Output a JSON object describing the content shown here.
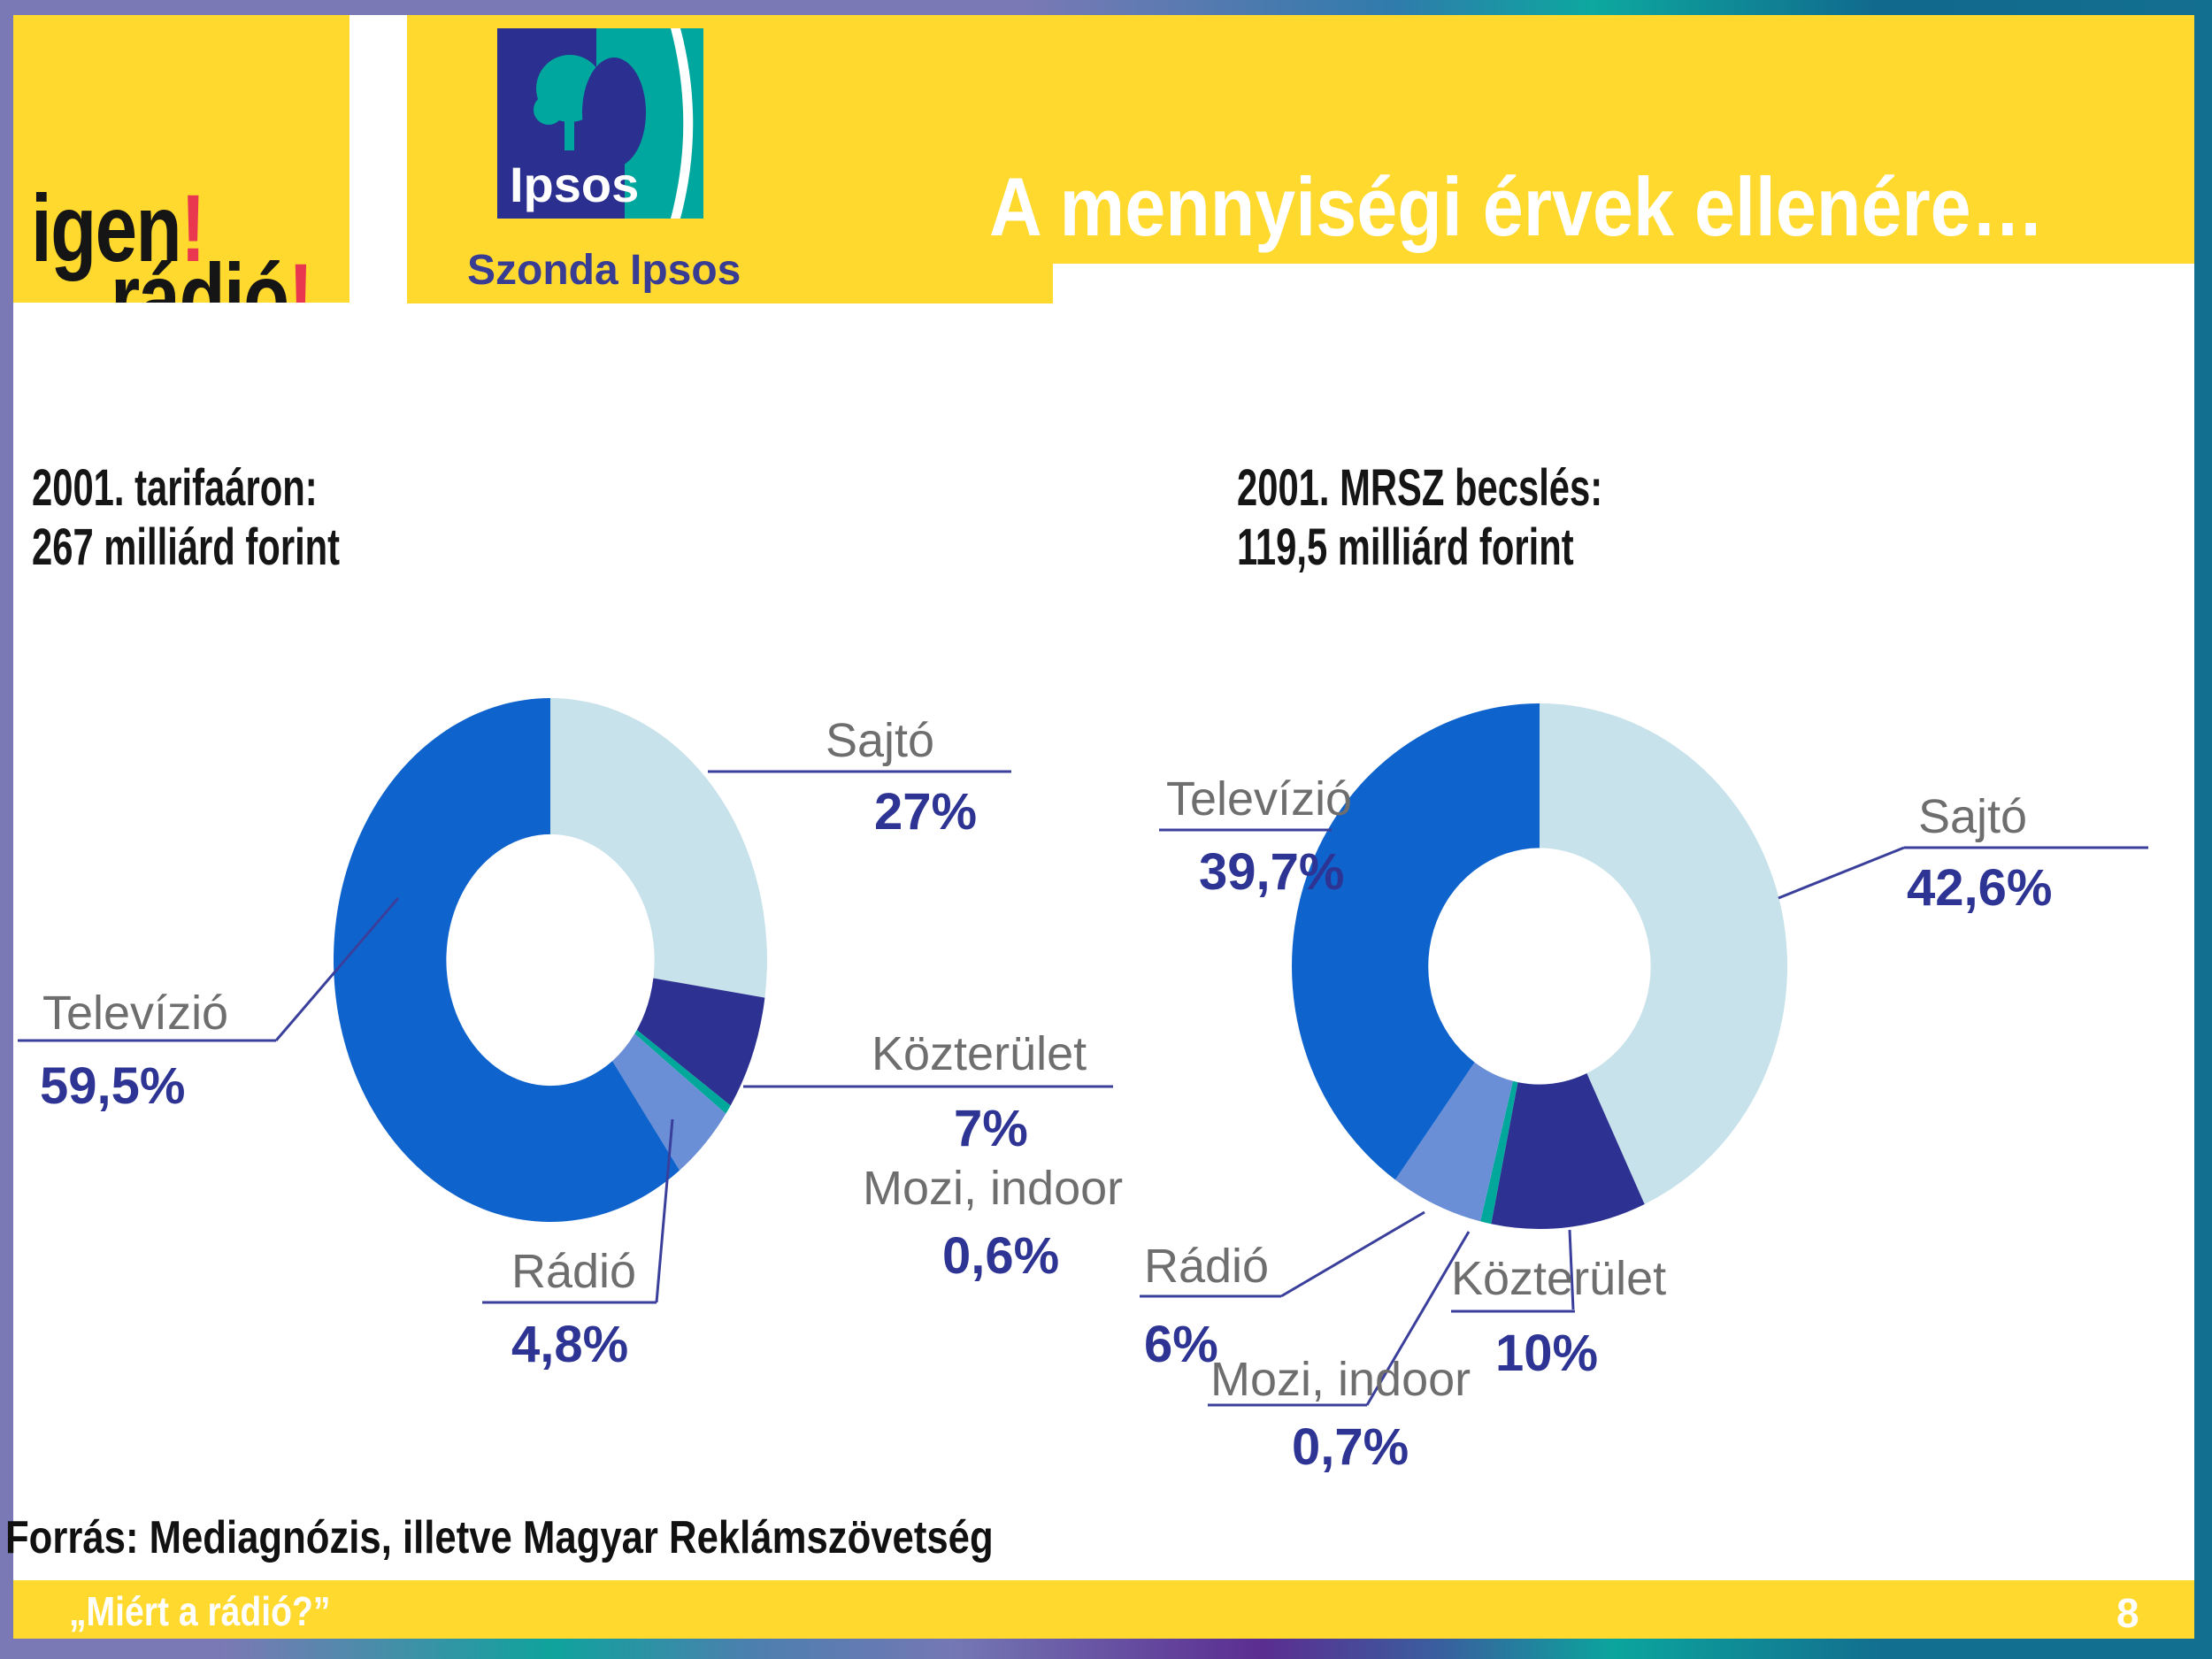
{
  "theme": {
    "slide_yellow": "#FFD92E",
    "border_purple": "#7B79B5",
    "border_teal": "#136F8F",
    "title_white": "#FFFFFF",
    "label_gray": "#6E6E6E",
    "value_navy": "#2E3493",
    "leader_blue": "#3A3F9B"
  },
  "logos": {
    "igen_line1_text": "igen",
    "igen_line1_mark": "!",
    "igen_line2_text": "rádió",
    "igen_line2_mark": "!",
    "ipsos_wordmark": "Ipsos",
    "szonda": "Szonda Ipsos"
  },
  "header": {
    "title": "A mennyiségi érvek ellenére…"
  },
  "chart_data": [
    {
      "type": "pie",
      "subtype": "donut",
      "title": "2001. tarifaáron: 267 milliárd forint",
      "heading_lines": [
        "2001. tarifaáron:",
        "267 milliárd forint"
      ],
      "categories": [
        "Sajtó",
        "Közterület",
        "Mozi, indoor",
        "Rádió",
        "Televízió"
      ],
      "values": [
        27,
        7,
        0.6,
        4.8,
        59.5
      ],
      "value_labels": [
        "27%",
        "7%",
        "0,6%",
        "4,8%",
        "59,5%"
      ],
      "colors": [
        "#C7E2EA",
        "#2D3192",
        "#00A79B",
        "#6B8FD6",
        "#0F63CC"
      ],
      "start_angle_deg": 0,
      "direction": "clockwise",
      "legend": false
    },
    {
      "type": "pie",
      "subtype": "donut",
      "title": "2001. MRSZ becslés: 119,5 milliárd forint",
      "heading_lines": [
        "2001. MRSZ becslés:",
        "119,5 milliárd forint"
      ],
      "categories": [
        "Sajtó",
        "Közterület",
        "Mozi, indoor",
        "Rádió",
        "Televízió"
      ],
      "values": [
        42.6,
        10,
        0.7,
        6,
        39.7
      ],
      "value_labels": [
        "42,6%",
        "10%",
        "0,7%",
        "6%",
        "39,7%"
      ],
      "colors": [
        "#C7E2EA",
        "#2D3192",
        "#00A79B",
        "#6B8FD6",
        "#0F63CC"
      ],
      "start_angle_deg": 0,
      "direction": "clockwise",
      "legend": false
    }
  ],
  "footer": {
    "source": "Forrás: Mediagnózis, illetve Magyar Reklámszövetség",
    "quote": "„Miért a rádió?”",
    "page_number": "8"
  }
}
